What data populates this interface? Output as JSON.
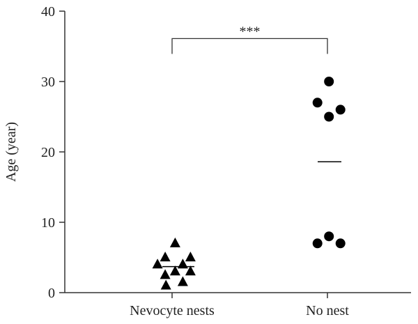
{
  "chart_data": {
    "type": "scatter",
    "title": "",
    "xlabel": "",
    "ylabel": "Age (year)",
    "ylim": [
      0,
      40
    ],
    "yticks": [
      0,
      10,
      20,
      30,
      40
    ],
    "categories": [
      "Nevocyte nests",
      "No nest"
    ],
    "series": [
      {
        "category": "Nevocyte nests",
        "marker": "triangle",
        "points": [
          {
            "offset": -0.19,
            "y": 4
          },
          {
            "offset": -0.09,
            "y": 5
          },
          {
            "offset": -0.09,
            "y": 2.5
          },
          {
            "offset": -0.08,
            "y": 1
          },
          {
            "offset": 0.04,
            "y": 7
          },
          {
            "offset": 0.04,
            "y": 3
          },
          {
            "offset": 0.14,
            "y": 4
          },
          {
            "offset": 0.14,
            "y": 1.5
          },
          {
            "offset": 0.24,
            "y": 5
          },
          {
            "offset": 0.24,
            "y": 3
          }
        ],
        "mean": 3.7
      },
      {
        "category": "No nest",
        "marker": "circle",
        "points": [
          {
            "offset": -0.13,
            "y": 27
          },
          {
            "offset": 0.02,
            "y": 30
          },
          {
            "offset": 0.02,
            "y": 25
          },
          {
            "offset": 0.17,
            "y": 26
          },
          {
            "offset": -0.13,
            "y": 7
          },
          {
            "offset": 0.02,
            "y": 8
          },
          {
            "offset": 0.17,
            "y": 7
          }
        ],
        "mean": 18.6
      }
    ],
    "significance": {
      "label": "***",
      "between": [
        "Nevocyte nests",
        "No nest"
      ],
      "y": 36
    },
    "colors": {
      "marker": "#000000",
      "axis": "#333333"
    }
  }
}
